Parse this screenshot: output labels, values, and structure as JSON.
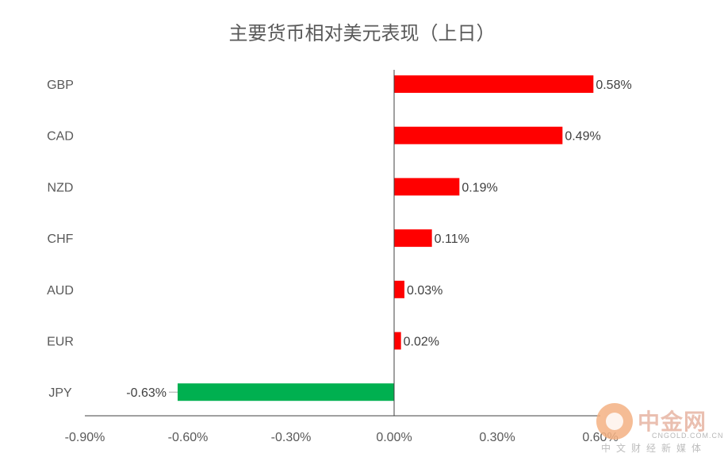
{
  "chart_data": {
    "type": "bar",
    "orientation": "horizontal",
    "title": "主要货币相对美元表现（上日）",
    "categories": [
      "GBP",
      "CAD",
      "NZD",
      "CHF",
      "AUD",
      "EUR",
      "JPY"
    ],
    "values": [
      0.58,
      0.49,
      0.19,
      0.11,
      0.03,
      0.02,
      -0.63
    ],
    "value_labels": [
      "0.58%",
      "0.49%",
      "0.19%",
      "0.11%",
      "0.03%",
      "0.02%",
      "-0.63%"
    ],
    "x_ticks": [
      -0.9,
      -0.6,
      -0.3,
      0.0,
      0.3,
      0.6
    ],
    "x_tick_labels": [
      "-0.90%",
      "-0.60%",
      "-0.30%",
      "0.00%",
      "0.30%",
      "0.60%"
    ],
    "xlim": [
      -0.9,
      0.6
    ],
    "grid": false,
    "legend": "none",
    "colors": {
      "positive": "#ff0000",
      "negative": "#00b050"
    }
  },
  "watermark": {
    "name": "中金网",
    "domain": "CNGOLD.COM.CN",
    "tagline": "中文财经新媒体"
  }
}
